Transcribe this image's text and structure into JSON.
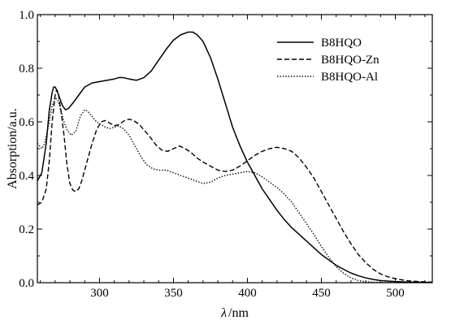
{
  "chart_data": {
    "type": "line",
    "title": "",
    "xlabel_symbol": "λ",
    "xlabel_unit": "nm",
    "ylabel": "Absorption/a.u.",
    "xlim": [
      258,
      525
    ],
    "ylim": [
      0.0,
      1.0
    ],
    "x_ticks": [
      300,
      350,
      400,
      450,
      500
    ],
    "x_tick_labels": [
      "300",
      "350",
      "400",
      "450",
      "500"
    ],
    "y_ticks": [
      0.0,
      0.2,
      0.4,
      0.6,
      0.8,
      1.0
    ],
    "y_tick_labels": [
      "0.0",
      "0.2",
      "0.4",
      "0.6",
      "0.8",
      "1.0"
    ],
    "grid": false,
    "legend_position": "top-right",
    "series": [
      {
        "name": "B8HQO",
        "style": "solid",
        "color": "#000000",
        "points": [
          [
            258,
            0.38
          ],
          [
            261,
            0.41
          ],
          [
            264,
            0.52
          ],
          [
            266,
            0.64
          ],
          [
            268,
            0.71
          ],
          [
            269,
            0.73
          ],
          [
            270,
            0.73
          ],
          [
            271,
            0.72
          ],
          [
            273,
            0.69
          ],
          [
            275,
            0.66
          ],
          [
            277,
            0.645
          ],
          [
            279,
            0.65
          ],
          [
            282,
            0.67
          ],
          [
            286,
            0.7
          ],
          [
            290,
            0.73
          ],
          [
            295,
            0.745
          ],
          [
            300,
            0.75
          ],
          [
            305,
            0.755
          ],
          [
            310,
            0.76
          ],
          [
            313,
            0.765
          ],
          [
            316,
            0.765
          ],
          [
            320,
            0.76
          ],
          [
            325,
            0.755
          ],
          [
            330,
            0.765
          ],
          [
            335,
            0.79
          ],
          [
            340,
            0.83
          ],
          [
            345,
            0.87
          ],
          [
            350,
            0.905
          ],
          [
            355,
            0.925
          ],
          [
            360,
            0.935
          ],
          [
            363,
            0.935
          ],
          [
            366,
            0.925
          ],
          [
            370,
            0.9
          ],
          [
            375,
            0.84
          ],
          [
            380,
            0.76
          ],
          [
            385,
            0.67
          ],
          [
            390,
            0.58
          ],
          [
            395,
            0.51
          ],
          [
            400,
            0.45
          ],
          [
            405,
            0.4
          ],
          [
            410,
            0.35
          ],
          [
            415,
            0.31
          ],
          [
            420,
            0.27
          ],
          [
            425,
            0.235
          ],
          [
            430,
            0.205
          ],
          [
            435,
            0.18
          ],
          [
            440,
            0.155
          ],
          [
            445,
            0.13
          ],
          [
            450,
            0.105
          ],
          [
            455,
            0.085
          ],
          [
            460,
            0.065
          ],
          [
            465,
            0.05
          ],
          [
            470,
            0.036
          ],
          [
            475,
            0.026
          ],
          [
            480,
            0.018
          ],
          [
            485,
            0.012
          ],
          [
            490,
            0.008
          ],
          [
            500,
            0.004
          ],
          [
            510,
            0.002
          ],
          [
            525,
            0.001
          ]
        ]
      },
      {
        "name": "B8HQO-Zn",
        "style": "dashed",
        "color": "#000000",
        "points": [
          [
            258,
            0.29
          ],
          [
            261,
            0.3
          ],
          [
            264,
            0.35
          ],
          [
            266,
            0.45
          ],
          [
            268,
            0.6
          ],
          [
            270,
            0.7
          ],
          [
            271,
            0.72
          ],
          [
            272,
            0.71
          ],
          [
            274,
            0.64
          ],
          [
            276,
            0.55
          ],
          [
            278,
            0.44
          ],
          [
            280,
            0.37
          ],
          [
            282,
            0.345
          ],
          [
            284,
            0.34
          ],
          [
            286,
            0.35
          ],
          [
            288,
            0.38
          ],
          [
            291,
            0.44
          ],
          [
            295,
            0.52
          ],
          [
            298,
            0.57
          ],
          [
            301,
            0.6
          ],
          [
            304,
            0.605
          ],
          [
            307,
            0.595
          ],
          [
            310,
            0.585
          ],
          [
            313,
            0.59
          ],
          [
            317,
            0.605
          ],
          [
            320,
            0.61
          ],
          [
            323,
            0.605
          ],
          [
            327,
            0.59
          ],
          [
            330,
            0.57
          ],
          [
            334,
            0.545
          ],
          [
            338,
            0.515
          ],
          [
            342,
            0.495
          ],
          [
            346,
            0.49
          ],
          [
            350,
            0.5
          ],
          [
            354,
            0.51
          ],
          [
            358,
            0.5
          ],
          [
            362,
            0.485
          ],
          [
            366,
            0.465
          ],
          [
            370,
            0.45
          ],
          [
            375,
            0.435
          ],
          [
            380,
            0.42
          ],
          [
            385,
            0.415
          ],
          [
            390,
            0.42
          ],
          [
            395,
            0.435
          ],
          [
            400,
            0.455
          ],
          [
            405,
            0.475
          ],
          [
            410,
            0.49
          ],
          [
            415,
            0.5
          ],
          [
            420,
            0.505
          ],
          [
            425,
            0.5
          ],
          [
            430,
            0.49
          ],
          [
            435,
            0.465
          ],
          [
            440,
            0.43
          ],
          [
            445,
            0.39
          ],
          [
            450,
            0.34
          ],
          [
            455,
            0.29
          ],
          [
            460,
            0.24
          ],
          [
            465,
            0.19
          ],
          [
            470,
            0.145
          ],
          [
            475,
            0.105
          ],
          [
            480,
            0.075
          ],
          [
            485,
            0.05
          ],
          [
            490,
            0.033
          ],
          [
            495,
            0.022
          ],
          [
            500,
            0.015
          ],
          [
            505,
            0.01
          ],
          [
            510,
            0.006
          ],
          [
            520,
            0.003
          ],
          [
            525,
            0.002
          ]
        ]
      },
      {
        "name": "B8HQO-Al",
        "style": "dotted",
        "color": "#000000",
        "points": [
          [
            258,
            0.52
          ],
          [
            261,
            0.5
          ],
          [
            263,
            0.52
          ],
          [
            266,
            0.6
          ],
          [
            268,
            0.66
          ],
          [
            270,
            0.69
          ],
          [
            272,
            0.68
          ],
          [
            274,
            0.64
          ],
          [
            276,
            0.6
          ],
          [
            278,
            0.57
          ],
          [
            281,
            0.55
          ],
          [
            284,
            0.565
          ],
          [
            287,
            0.62
          ],
          [
            290,
            0.645
          ],
          [
            292,
            0.64
          ],
          [
            295,
            0.62
          ],
          [
            298,
            0.6
          ],
          [
            301,
            0.59
          ],
          [
            304,
            0.58
          ],
          [
            307,
            0.575
          ],
          [
            310,
            0.58
          ],
          [
            313,
            0.585
          ],
          [
            316,
            0.575
          ],
          [
            320,
            0.55
          ],
          [
            324,
            0.51
          ],
          [
            328,
            0.47
          ],
          [
            332,
            0.44
          ],
          [
            336,
            0.425
          ],
          [
            340,
            0.42
          ],
          [
            345,
            0.42
          ],
          [
            350,
            0.41
          ],
          [
            355,
            0.4
          ],
          [
            360,
            0.39
          ],
          [
            365,
            0.38
          ],
          [
            370,
            0.37
          ],
          [
            375,
            0.375
          ],
          [
            380,
            0.39
          ],
          [
            385,
            0.4
          ],
          [
            390,
            0.405
          ],
          [
            395,
            0.41
          ],
          [
            400,
            0.415
          ],
          [
            405,
            0.41
          ],
          [
            410,
            0.395
          ],
          [
            415,
            0.375
          ],
          [
            420,
            0.355
          ],
          [
            425,
            0.33
          ],
          [
            430,
            0.3
          ],
          [
            435,
            0.26
          ],
          [
            440,
            0.22
          ],
          [
            445,
            0.18
          ],
          [
            450,
            0.135
          ],
          [
            455,
            0.095
          ],
          [
            460,
            0.06
          ],
          [
            465,
            0.035
          ],
          [
            470,
            0.018
          ],
          [
            475,
            0.008
          ],
          [
            480,
            0.003
          ],
          [
            490,
            0.001
          ],
          [
            525,
            0.0
          ]
        ]
      }
    ]
  }
}
